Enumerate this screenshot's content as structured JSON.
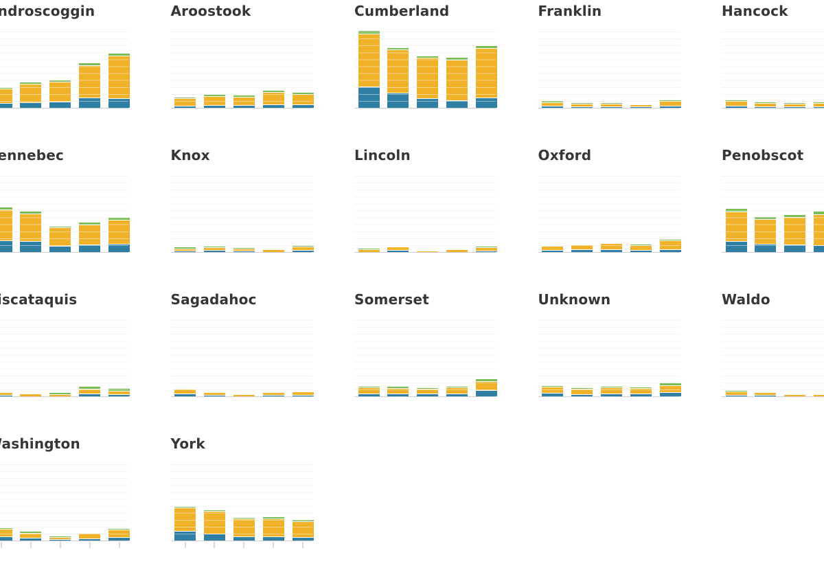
{
  "chart_data": {
    "type": "bar",
    "variant": "small-multiples-stacked-columns",
    "title": "",
    "x_axis_labels_visible": false,
    "y_axis_labels_visible": false,
    "grid": true,
    "gridline_count": 12,
    "value_unit": "pixels (axis labels not visible in screenshot; values estimated from bar heights, plot height = 112px)",
    "bars_per_chart": 5,
    "stack_order": [
      "blue",
      "yellow",
      "green"
    ],
    "colors": {
      "blue": "#2f7ea4",
      "yellow": "#f0b229",
      "green": "#7abd57",
      "gridline": "#e9e9e9",
      "baseline": "#cdcdcd",
      "tick": "#d9d9d9",
      "title_text": "#363636",
      "background": "#ffffff"
    },
    "bottom_row_has_ticks": true,
    "charts": [
      {
        "county": "Androscoggin",
        "stacks": [
          [
            6,
            20,
            1
          ],
          [
            7,
            26,
            2
          ],
          [
            8,
            28,
            2
          ],
          [
            14,
            46,
            3
          ],
          [
            13,
            61,
            3
          ]
        ]
      },
      {
        "county": "Aroostook",
        "stacks": [
          [
            2,
            10,
            1
          ],
          [
            3,
            12,
            2
          ],
          [
            3,
            11,
            2
          ],
          [
            4,
            17,
            2
          ],
          [
            4,
            14,
            2
          ]
        ]
      },
      {
        "county": "Cumberland",
        "stacks": [
          [
            30,
            76,
            4
          ],
          [
            21,
            62,
            2
          ],
          [
            13,
            58,
            2
          ],
          [
            10,
            58,
            3
          ],
          [
            14,
            71,
            3
          ]
        ]
      },
      {
        "county": "Franklin",
        "stacks": [
          [
            2,
            4,
            2
          ],
          [
            1,
            3,
            1
          ],
          [
            1,
            3,
            1
          ],
          [
            1,
            2,
            0
          ],
          [
            2,
            6,
            1
          ]
        ]
      },
      {
        "county": "Hancock",
        "stacks": [
          [
            2,
            6,
            1
          ],
          [
            1,
            4,
            1
          ],
          [
            1,
            3,
            1
          ],
          [
            1,
            4,
            1
          ],
          [
            1,
            4,
            1
          ]
        ]
      },
      {
        "county": "Kennebec",
        "stacks": [
          [
            16,
            44,
            3
          ],
          [
            15,
            39,
            3
          ],
          [
            8,
            26,
            1
          ],
          [
            10,
            28,
            3
          ],
          [
            11,
            34,
            3
          ]
        ]
      },
      {
        "county": "Knox",
        "stacks": [
          [
            1,
            2,
            2
          ],
          [
            2,
            3,
            1
          ],
          [
            1,
            2,
            1
          ],
          [
            0,
            3,
            0
          ],
          [
            2,
            4,
            1
          ]
        ]
      },
      {
        "county": "Lincoln",
        "stacks": [
          [
            0,
            3,
            1
          ],
          [
            2,
            4,
            0
          ],
          [
            0,
            1,
            0
          ],
          [
            0,
            3,
            0
          ],
          [
            1,
            4,
            1
          ]
        ]
      },
      {
        "county": "Oxford",
        "stacks": [
          [
            2,
            5,
            0
          ],
          [
            3,
            6,
            0
          ],
          [
            3,
            8,
            0
          ],
          [
            2,
            6,
            1
          ],
          [
            3,
            12,
            1
          ]
        ]
      },
      {
        "county": "Penobscot",
        "stacks": [
          [
            15,
            42,
            4
          ],
          [
            11,
            35,
            3
          ],
          [
            10,
            39,
            3
          ],
          [
            9,
            44,
            4
          ],
          [
            12,
            38,
            3
          ]
        ]
      },
      {
        "county": "Piscataquis",
        "stacks": [
          [
            1,
            3,
            0
          ],
          [
            0,
            3,
            0
          ],
          [
            0,
            2,
            2
          ],
          [
            3,
            6,
            3
          ],
          [
            2,
            4,
            3
          ]
        ]
      },
      {
        "county": "Sagadahoc",
        "stacks": [
          [
            3,
            6,
            0
          ],
          [
            1,
            3,
            0
          ],
          [
            0,
            2,
            0
          ],
          [
            1,
            3,
            0
          ],
          [
            1,
            4,
            0
          ]
        ]
      },
      {
        "county": "Somerset",
        "stacks": [
          [
            3,
            8,
            1
          ],
          [
            3,
            7,
            2
          ],
          [
            3,
            6,
            1
          ],
          [
            3,
            8,
            1
          ],
          [
            8,
            12,
            3
          ]
        ]
      },
      {
        "county": "Unknown",
        "stacks": [
          [
            4,
            8,
            1
          ],
          [
            2,
            7,
            1
          ],
          [
            3,
            8,
            1
          ],
          [
            3,
            7,
            1
          ],
          [
            5,
            9,
            3
          ]
        ]
      },
      {
        "county": "Waldo",
        "stacks": [
          [
            1,
            4,
            1
          ],
          [
            1,
            3,
            0
          ],
          [
            0,
            2,
            0
          ],
          [
            0,
            2,
            0
          ],
          [
            1,
            3,
            1
          ]
        ]
      },
      {
        "county": "Washington",
        "stacks": [
          [
            5,
            10,
            1
          ],
          [
            3,
            6,
            2
          ],
          [
            1,
            2,
            1
          ],
          [
            2,
            7,
            0
          ],
          [
            4,
            10,
            1
          ]
        ]
      },
      {
        "county": "York",
        "stacks": [
          [
            13,
            33,
            1
          ],
          [
            9,
            32,
            1
          ],
          [
            5,
            25,
            1
          ],
          [
            5,
            25,
            2
          ],
          [
            4,
            22,
            2
          ]
        ]
      }
    ]
  },
  "layout": {
    "columns": 5,
    "rows": 4,
    "bottom_row_counties": [
      "Washington",
      "York"
    ]
  }
}
